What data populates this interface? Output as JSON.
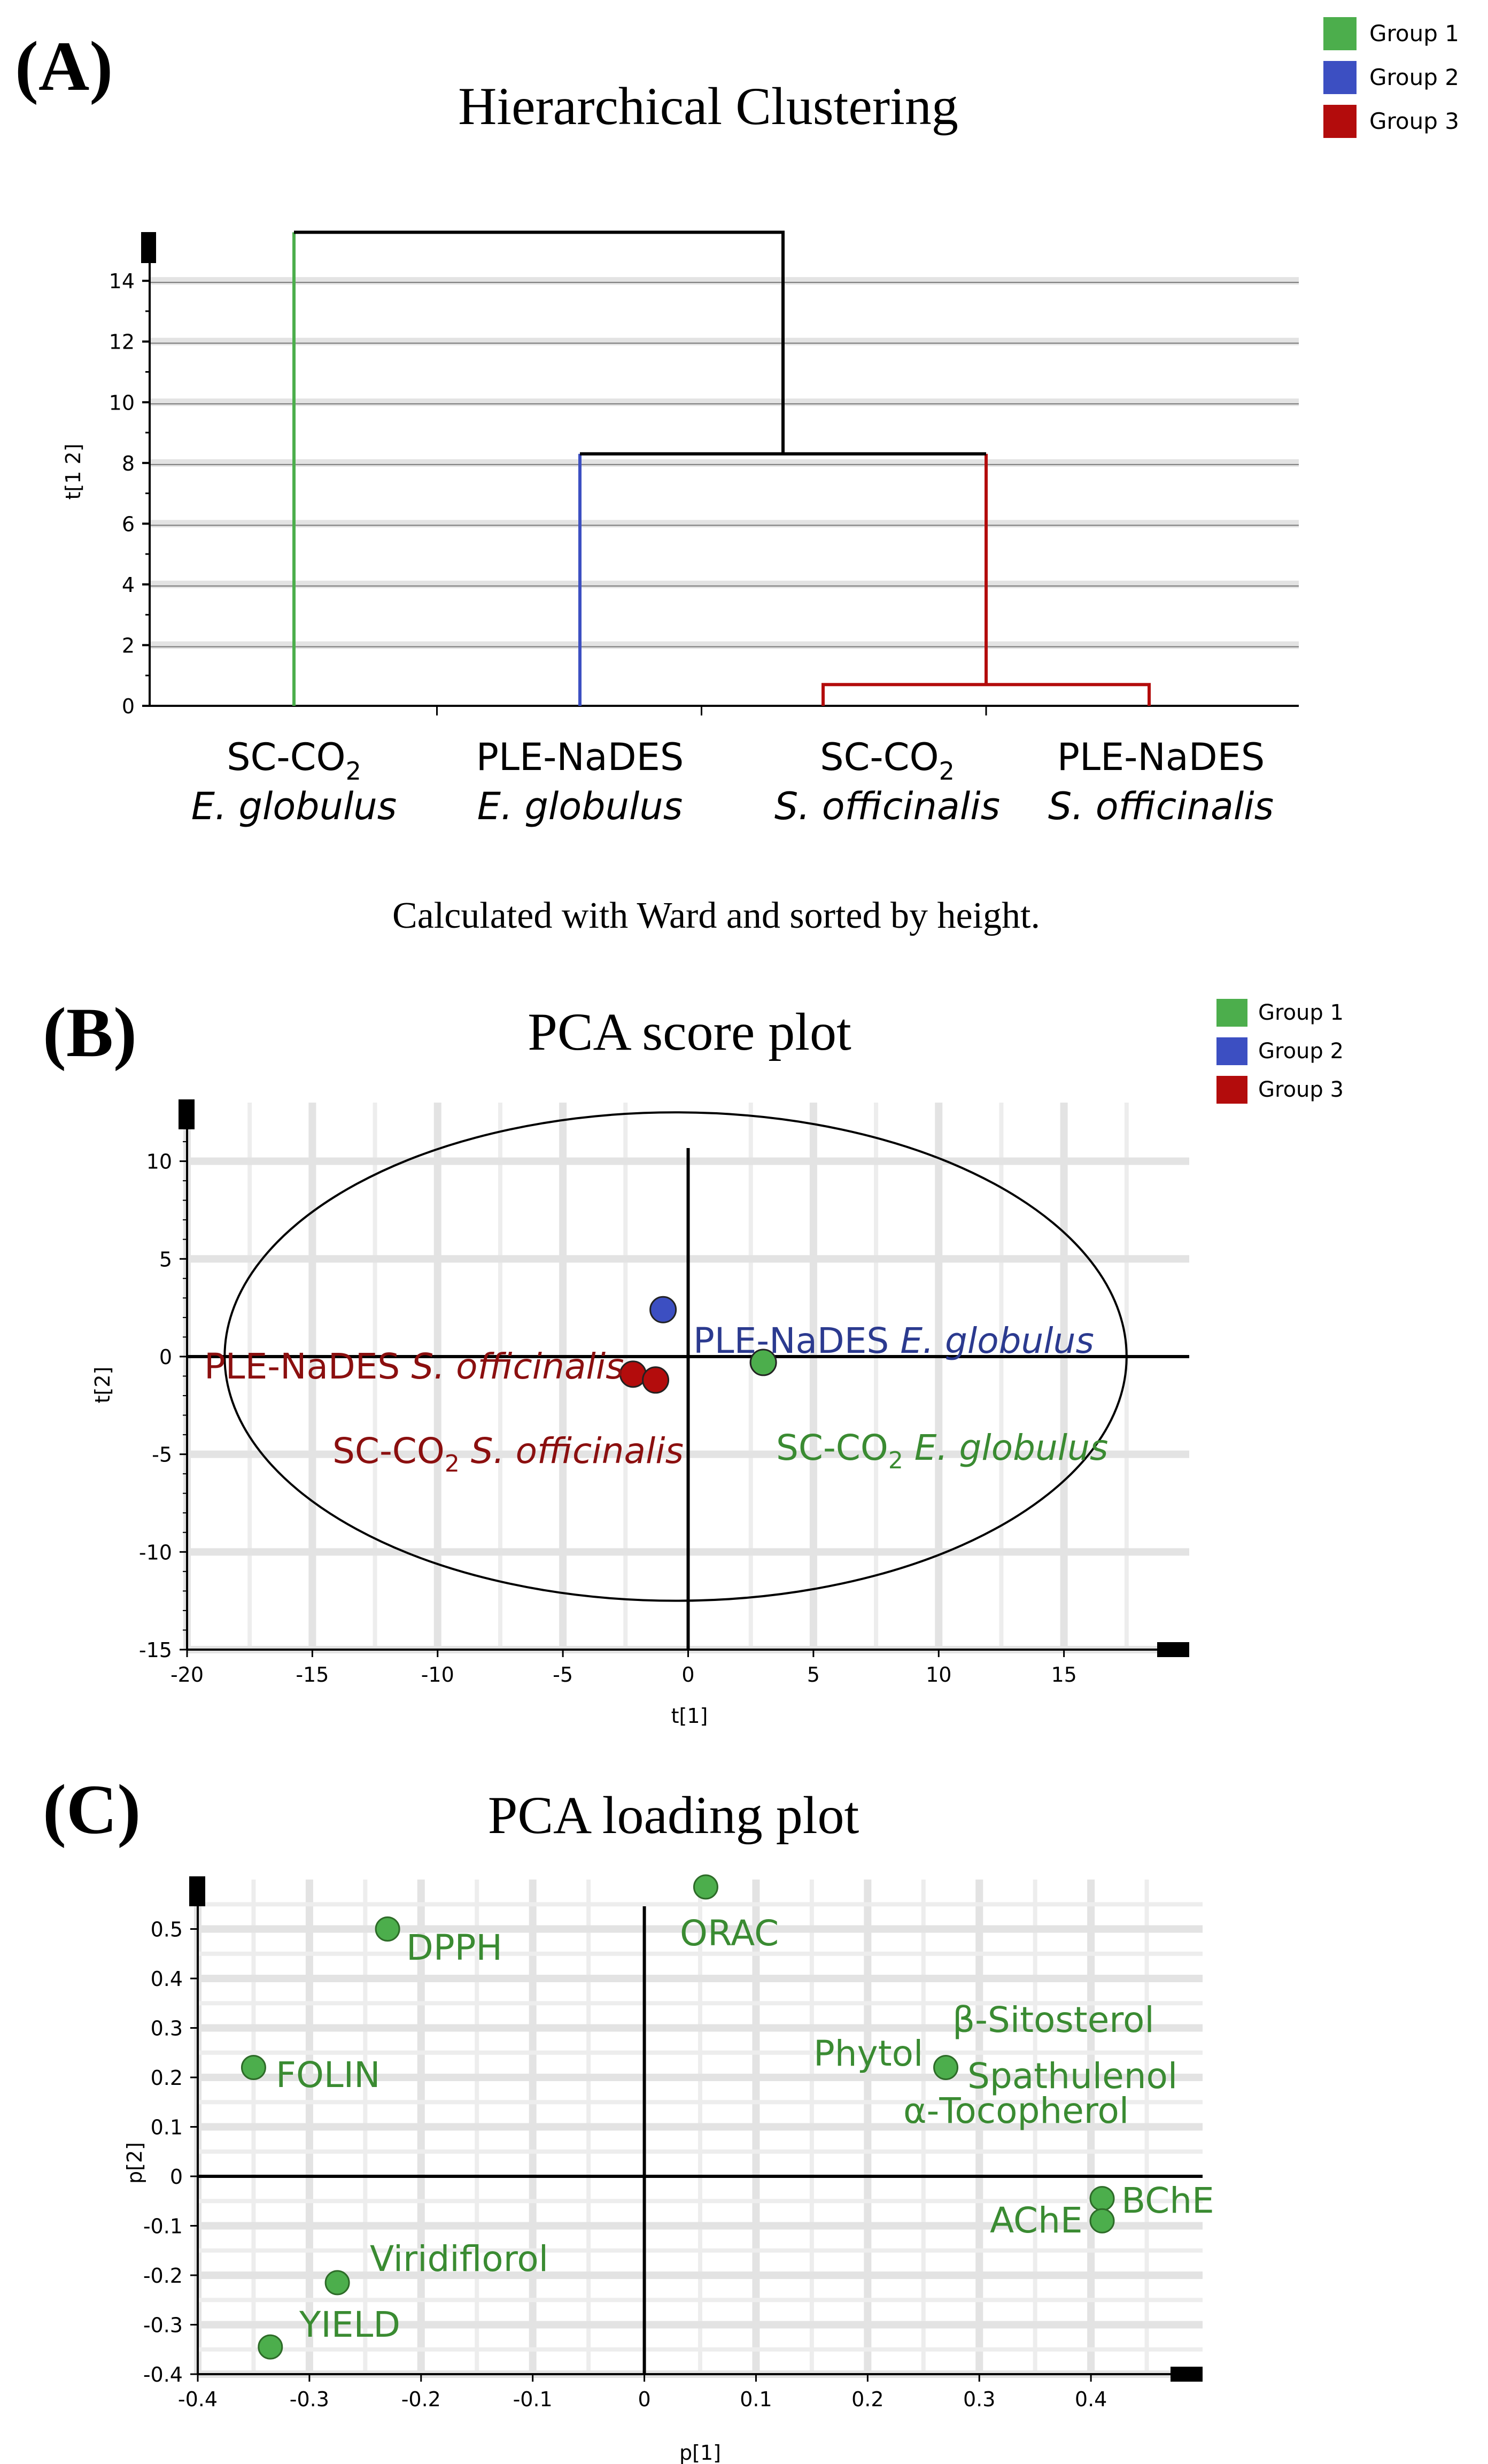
{
  "panels": {
    "a": "(A)",
    "b": "(B)",
    "c": "(C)"
  },
  "colors": {
    "group1": "#4cae4c",
    "group2": "#3c4fc2",
    "group3": "#b30c0c",
    "label_green": "#3a8b32",
    "label_blue": "#2b3a8f",
    "label_red": "#8b0f0f",
    "grid": "#e3e3e3"
  },
  "legend": {
    "items": [
      "Group 1",
      "Group 2",
      "Group 3"
    ]
  },
  "dendrogram": {
    "title": "Hierarchical Clustering",
    "ylabel": "t[1 2]",
    "note": "Calculated with Ward and sorted by height.",
    "categories": [
      {
        "main": "SC-CO",
        "sub": "2",
        "species": "E. globulus",
        "group": 1
      },
      {
        "main": "PLE-NaDES",
        "sub": "",
        "species": "E. globulus",
        "group": 2
      },
      {
        "main": "SC-CO",
        "sub": "2",
        "species": "S. officinalis",
        "group": 3
      },
      {
        "main": "PLE-NaDES",
        "sub": "",
        "species": "S. officinalis",
        "group": 3
      }
    ]
  },
  "score_plot": {
    "title": "PCA score plot",
    "xlabel": "t[1]",
    "ylabel": "t[2]",
    "labels": {
      "ple_eg_prefix": "PLE-NaDES ",
      "ple_eg_species": "E. globulus",
      "ple_so_prefix": "PLE-NaDES ",
      "ple_so_species": "S. officinalis",
      "sc_so_main": "SC-CO",
      "sc_so_sub": "2",
      "sc_so_species": " S. officinalis",
      "sc_eg_main": "SC-CO",
      "sc_eg_sub": "2",
      "sc_eg_species": " E. globulus"
    }
  },
  "loading_plot": {
    "title": "PCA loading plot",
    "xlabel": "p[1]",
    "ylabel": "p[2]"
  },
  "chart_data": [
    {
      "type": "dendrogram",
      "title": "Hierarchical Clustering",
      "ylabel": "t[1 2]",
      "ylim": [
        0,
        15.5
      ],
      "yticks": [
        0,
        2,
        4,
        6,
        8,
        10,
        12,
        14
      ],
      "leaves": [
        "SC-CO2 E. globulus",
        "PLE-NaDES E. globulus",
        "SC-CO2 S. officinalis",
        "PLE-NaDES S. officinalis"
      ],
      "merges": [
        {
          "left": 2,
          "right": 3,
          "height": 0.7
        },
        {
          "left": 1,
          "right": "merge0",
          "height": 8.3
        },
        {
          "left": 0,
          "right": "merge1",
          "height": 15.6
        }
      ],
      "method": "Ward"
    },
    {
      "type": "scatter",
      "title": "PCA score plot",
      "xlabel": "t[1]",
      "ylabel": "t[2]",
      "xlim": [
        -20,
        20
      ],
      "ylim": [
        -15,
        13
      ],
      "xticks": [
        -20,
        -15,
        -10,
        -5,
        0,
        5,
        10,
        15
      ],
      "yticks": [
        -15,
        -10,
        -5,
        0,
        5,
        10
      ],
      "ellipse": {
        "cx": -0.5,
        "cy": 0,
        "rx": 18,
        "ry": 12.5
      },
      "points": [
        {
          "name": "PLE-NaDES E. globulus",
          "x": -1.0,
          "y": 2.4,
          "group": 2
        },
        {
          "name": "SC-CO2 E. globulus",
          "x": 3.0,
          "y": -0.3,
          "group": 1
        },
        {
          "name": "PLE-NaDES S. officinalis",
          "x": -2.2,
          "y": -0.9,
          "group": 3
        },
        {
          "name": "SC-CO2 S. officinalis",
          "x": -1.3,
          "y": -1.2,
          "group": 3
        }
      ]
    },
    {
      "type": "scatter",
      "title": "PCA loading plot",
      "xlabel": "p[1]",
      "ylabel": "p[2]",
      "xlim": [
        -0.4,
        0.5
      ],
      "ylim": [
        -0.4,
        0.6
      ],
      "xticks": [
        -0.4,
        -0.3,
        -0.2,
        -0.1,
        0,
        0.1,
        0.2,
        0.3,
        0.4
      ],
      "yticks": [
        -0.4,
        -0.3,
        -0.2,
        -0.1,
        0,
        0.1,
        0.2,
        0.3,
        0.4,
        0.5
      ],
      "points": [
        {
          "name": "ORAC",
          "x": 0.055,
          "y": 0.585
        },
        {
          "name": "DPPH",
          "x": -0.23,
          "y": 0.5
        },
        {
          "name": "FOLIN",
          "x": -0.35,
          "y": 0.22
        },
        {
          "name": "Phytol / Spathulenol / β-Sitosterol / α-Tocopherol",
          "x": 0.27,
          "y": 0.22
        },
        {
          "name": "BChE",
          "x": 0.41,
          "y": -0.045
        },
        {
          "name": "AChE",
          "x": 0.41,
          "y": -0.09
        },
        {
          "name": "Viridiflorol",
          "x": -0.275,
          "y": -0.215
        },
        {
          "name": "YIELD",
          "x": -0.335,
          "y": -0.345
        }
      ],
      "point_labels": [
        "ORAC",
        "DPPH",
        "FOLIN",
        "Phytol",
        "β-Sitosterol",
        "Spathulenol",
        "α-Tocopherol",
        "BChE",
        "AChE",
        "Viridiflorol",
        "YIELD"
      ]
    }
  ]
}
